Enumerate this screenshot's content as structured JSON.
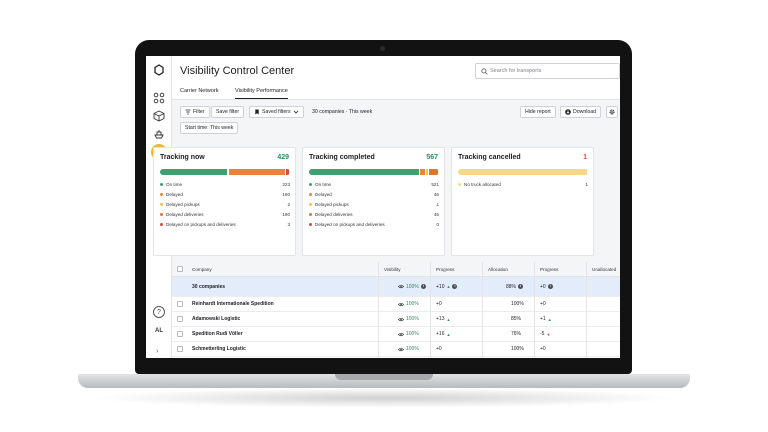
{
  "app": {
    "title": "Visibility Control Center",
    "tabs": [
      {
        "label": "Carrier Network",
        "active": false
      },
      {
        "label": "Visibility Performance",
        "active": true
      }
    ],
    "search_placeholder": "Search for transports",
    "user_initials": "AL",
    "help_label": "?"
  },
  "toolbar": {
    "filter_label": "Filter",
    "save_filter_label": "Save filter",
    "saved_filters_label": "Saved filters",
    "summary": "30 companies · This week",
    "hide_report_label": "Hide report",
    "download_label": "Download",
    "chip_label": "Start time: This week"
  },
  "colors": {
    "on_time": "#3f9f6f",
    "delayed": "#e9823a",
    "delayed_pickups": "#f3c64a",
    "delayed_deliveries": "#d9782c",
    "delayed_both": "#d94a3a",
    "no_truck": "#f7d88a",
    "accent": "#f3b43a"
  },
  "cards": [
    {
      "title": "Tracking now",
      "count": "429",
      "count_color": "#2f8a5a",
      "bar": [
        {
          "fraction": 0.52,
          "color": "#3f9f6f"
        },
        {
          "fraction": 0.01,
          "color": "#f3c64a"
        },
        {
          "fraction": 0.44,
          "color": "#e9823a"
        },
        {
          "fraction": 0.03,
          "color": "#d94a3a"
        }
      ],
      "legend": [
        {
          "label": "On time",
          "value": "223",
          "color": "#3f9f6f"
        },
        {
          "label": "Delayed",
          "value": "190",
          "color": "#e9823a"
        },
        {
          "label": "Delayed pickups",
          "value": "2",
          "color": "#f3c64a"
        },
        {
          "label": "Delayed deliveries",
          "value": "190",
          "color": "#d9782c"
        },
        {
          "label": "Delayed on pickups and deliveries",
          "value": "3",
          "color": "#d94a3a"
        }
      ]
    },
    {
      "title": "Tracking completed",
      "count": "567",
      "count_color": "#2f8a5a",
      "bar": [
        {
          "fraction": 0.85,
          "color": "#3f9f6f"
        },
        {
          "fraction": 0.05,
          "color": "#e9823a"
        },
        {
          "fraction": 0.02,
          "color": "#f3c64a"
        },
        {
          "fraction": 0.08,
          "color": "#d9782c"
        }
      ],
      "legend": [
        {
          "label": "On time",
          "value": "521",
          "color": "#3f9f6f"
        },
        {
          "label": "Delayed",
          "value": "46",
          "color": "#e9823a"
        },
        {
          "label": "Delayed pickups",
          "value": "1",
          "color": "#f3c64a"
        },
        {
          "label": "Delayed deliveries",
          "value": "45",
          "color": "#d9782c"
        },
        {
          "label": "Delayed on pickups and deliveries",
          "value": "0",
          "color": "#d94a3a"
        }
      ]
    },
    {
      "title": "Tracking cancelled",
      "count": "1",
      "count_color": "#d94a3a",
      "bar": [
        {
          "fraction": 1.0,
          "color": "#f7d88a"
        }
      ],
      "legend": [
        {
          "label": "No truck allocated",
          "value": "1",
          "color": "#f7d88a"
        }
      ]
    }
  ],
  "table": {
    "headers": {
      "company": "Company",
      "visibility": "Visibility",
      "progress": "Progress",
      "allocation": "Allocation",
      "progress2": "Progress",
      "unallocated": "Unallocated"
    },
    "total": {
      "company": "30 companies",
      "visibility": "100%",
      "progress": "+10",
      "allocation": "88%",
      "progress2": "+0"
    },
    "rows": [
      {
        "company": "Reinhardt Internationale Spedition",
        "visibility": "100%",
        "progress": "+0",
        "progress_trend": "",
        "allocation": "100%",
        "progress2": "+0",
        "progress2_trend": ""
      },
      {
        "company": "Adamowski Logistic",
        "visibility": "100%",
        "progress": "+13",
        "progress_trend": "▲",
        "allocation": "85%",
        "progress2": "+1",
        "progress2_trend": "▲"
      },
      {
        "company": "Spedition Rudi Völler",
        "visibility": "100%",
        "progress": "+16",
        "progress_trend": "▲",
        "allocation": "76%",
        "progress2": "-5",
        "progress2_trend": "▼"
      },
      {
        "company": "Schmetterling Logistic",
        "visibility": "100%",
        "progress": "+0",
        "progress_trend": "",
        "allocation": "100%",
        "progress2": "+0",
        "progress2_trend": ""
      }
    ]
  }
}
